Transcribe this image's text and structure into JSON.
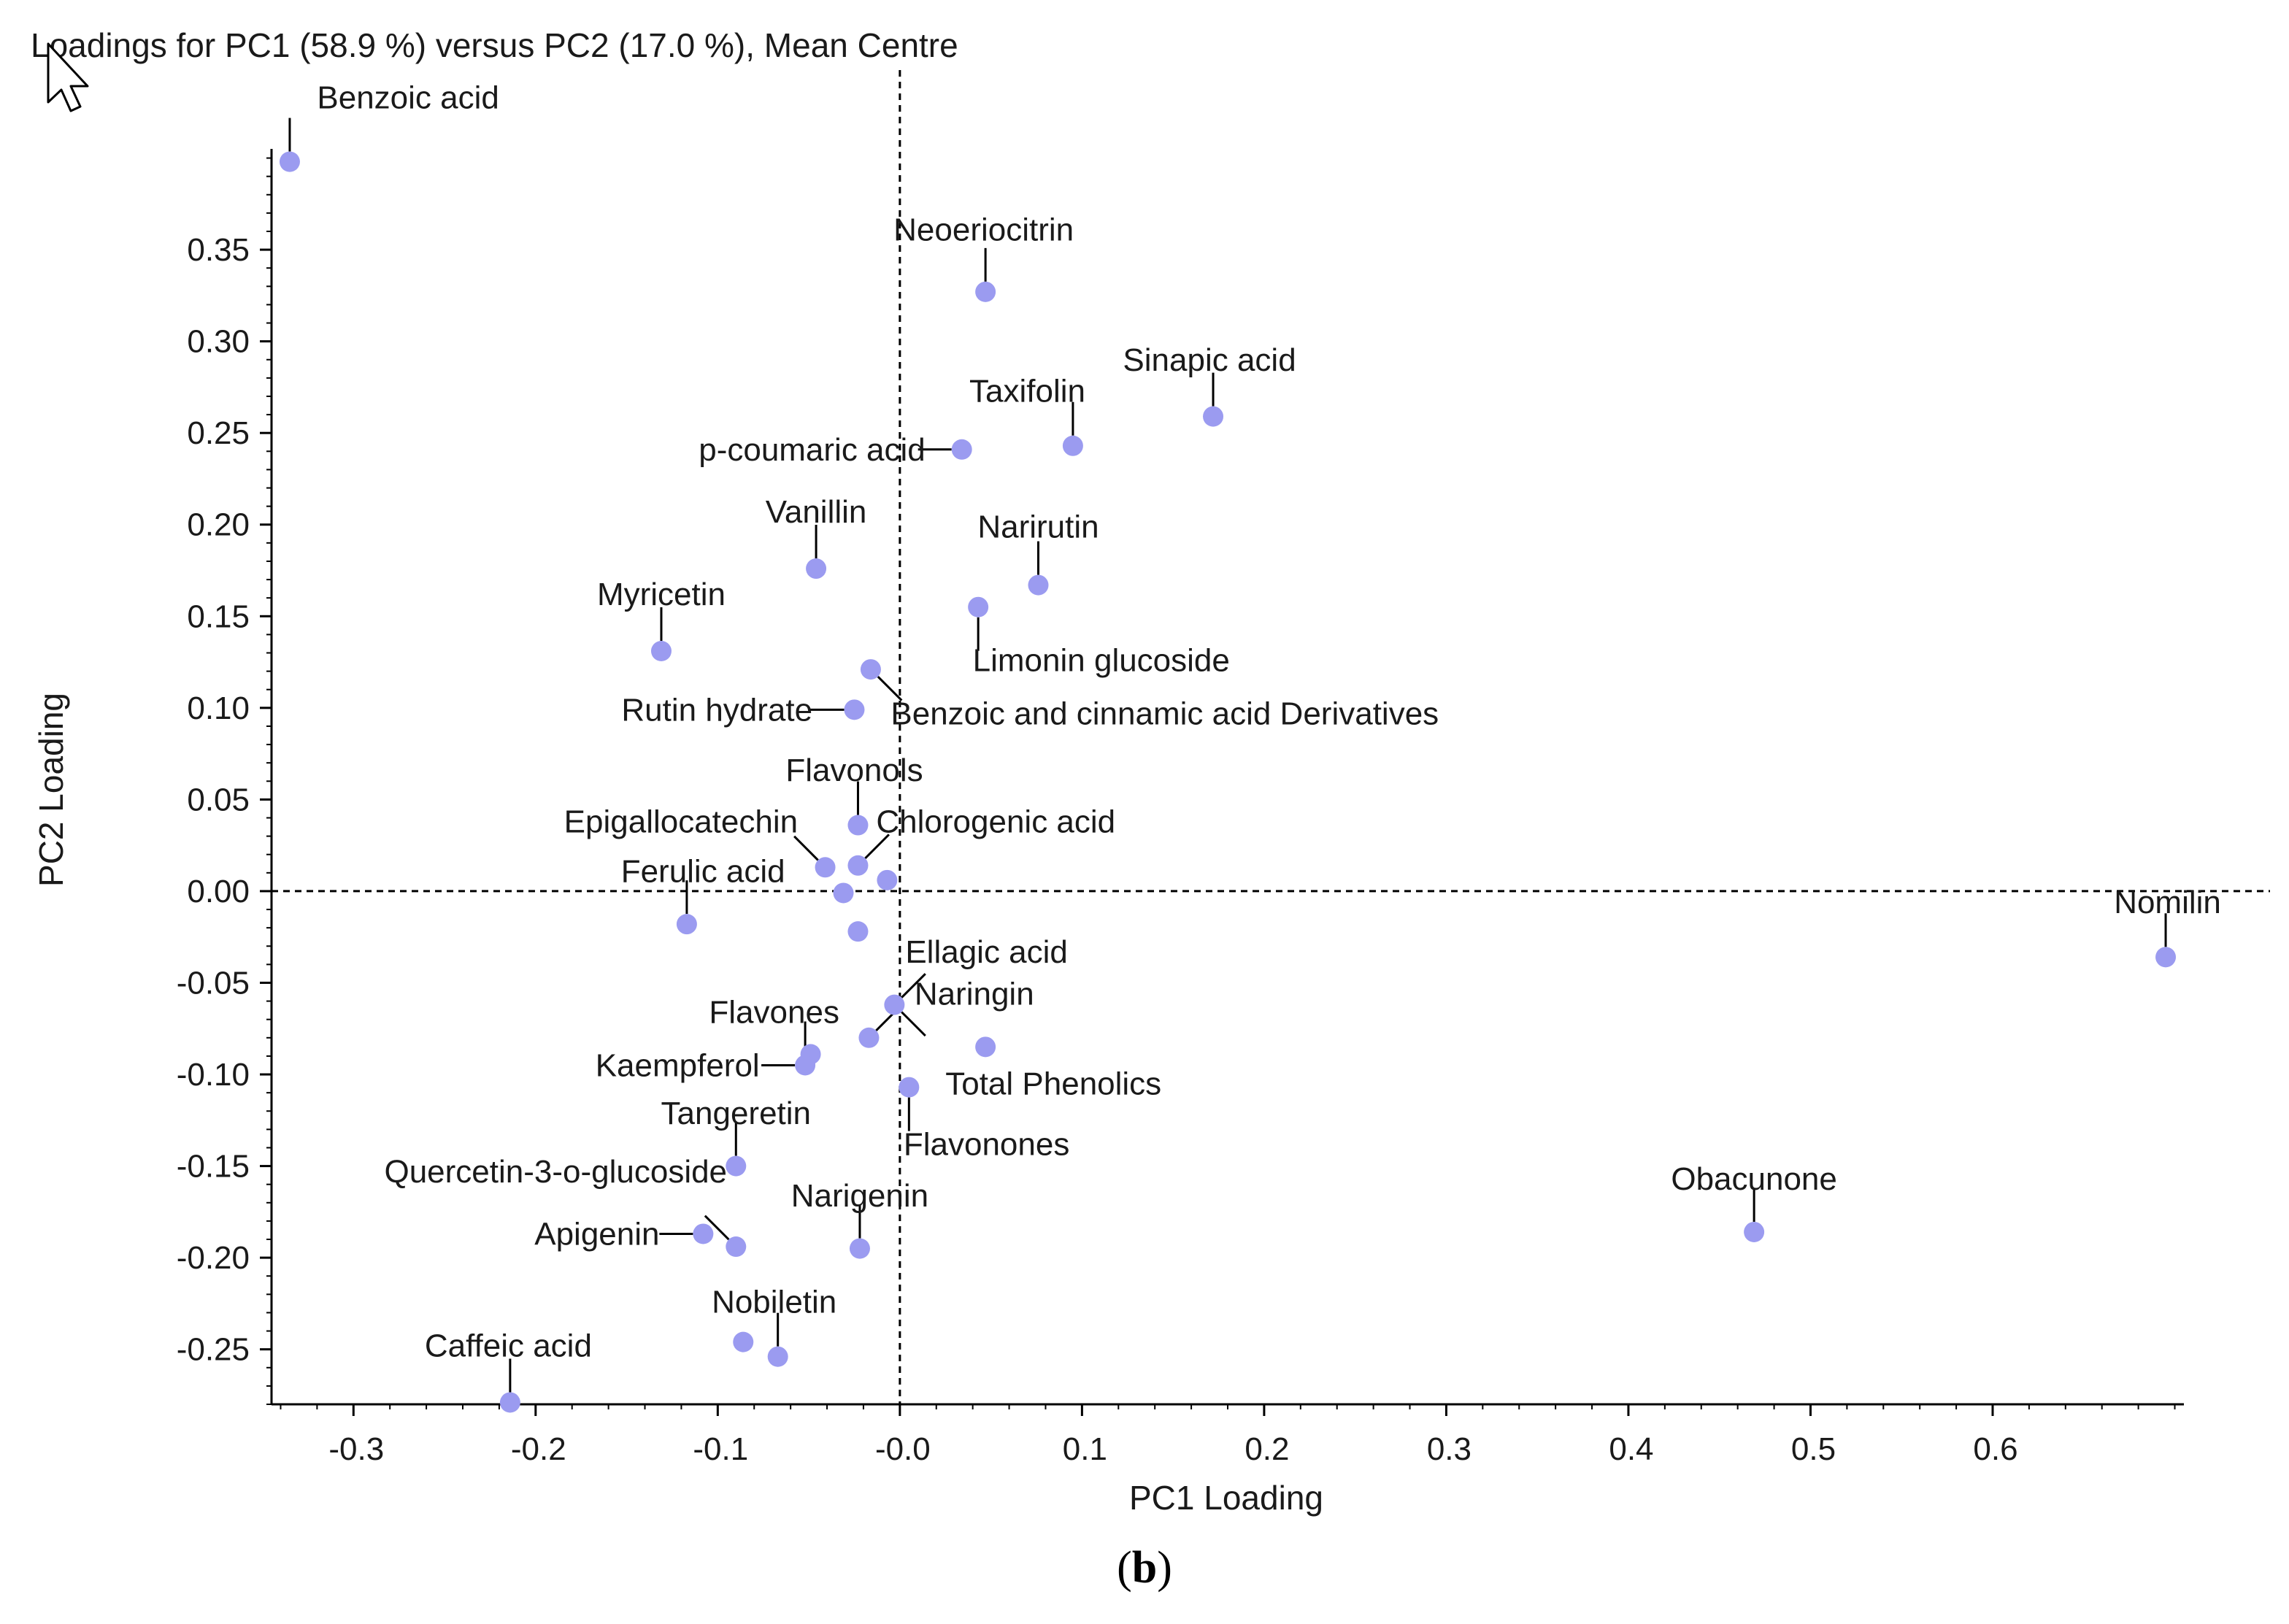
{
  "title": "Loadings for PC1 (58.9 %) versus PC2 (17.0 %), Mean Centre",
  "caption": {
    "open": "(",
    "letter": "b",
    "close": ")"
  },
  "colors": {
    "point": "#9b9bf0",
    "point_dark": "#5b5be6",
    "axis": "#000000",
    "text": "#1a1a1a"
  },
  "chart_data": {
    "type": "scatter",
    "title": "Loadings for PC1 (58.9 %) versus PC2 (17.0 %), Mean Centre",
    "xlabel": "PC1 Loading",
    "ylabel": "PC2 Loading",
    "xlim": [
      -0.345,
      0.705
    ],
    "ylim": [
      -0.28,
      0.405
    ],
    "x_ticks": [
      {
        "v": -0.3,
        "label": "-0.3"
      },
      {
        "v": -0.2,
        "label": "-0.2"
      },
      {
        "v": -0.1,
        "label": "-0.1"
      },
      {
        "v": 0.0,
        "label": "-0.0"
      },
      {
        "v": 0.1,
        "label": "0.1"
      },
      {
        "v": 0.2,
        "label": "0.2"
      },
      {
        "v": 0.3,
        "label": "0.3"
      },
      {
        "v": 0.4,
        "label": "0.4"
      },
      {
        "v": 0.5,
        "label": "0.5"
      },
      {
        "v": 0.6,
        "label": "0.6"
      }
    ],
    "y_ticks": [
      {
        "v": 0.35,
        "label": "0.35"
      },
      {
        "v": 0.3,
        "label": "0.30"
      },
      {
        "v": 0.25,
        "label": "0.25"
      },
      {
        "v": 0.2,
        "label": "0.20"
      },
      {
        "v": 0.15,
        "label": "0.15"
      },
      {
        "v": 0.1,
        "label": "0.10"
      },
      {
        "v": 0.05,
        "label": "0.05"
      },
      {
        "v": 0.0,
        "label": "0.00"
      },
      {
        "v": -0.05,
        "label": "-0.05"
      },
      {
        "v": -0.1,
        "label": "-0.10"
      },
      {
        "v": -0.15,
        "label": "-0.15"
      },
      {
        "v": -0.2,
        "label": "-0.20"
      },
      {
        "v": -0.25,
        "label": "-0.25"
      }
    ],
    "reference_lines": {
      "x": 0.0,
      "y": 0.0
    },
    "points": [
      {
        "x": -0.335,
        "y": 0.398
      },
      {
        "x": 0.047,
        "y": 0.327
      },
      {
        "x": 0.172,
        "y": 0.259
      },
      {
        "x": 0.095,
        "y": 0.243
      },
      {
        "x": 0.034,
        "y": 0.241
      },
      {
        "x": 0.076,
        "y": 0.167
      },
      {
        "x": -0.046,
        "y": 0.176
      },
      {
        "x": 0.043,
        "y": 0.155
      },
      {
        "x": -0.131,
        "y": 0.131
      },
      {
        "x": -0.016,
        "y": 0.121
      },
      {
        "x": -0.025,
        "y": 0.099
      },
      {
        "x": -0.023,
        "y": 0.036
      },
      {
        "x": -0.041,
        "y": 0.013
      },
      {
        "x": -0.023,
        "y": 0.014
      },
      {
        "x": -0.007,
        "y": 0.006
      },
      {
        "x": -0.031,
        "y": -0.001
      },
      {
        "x": -0.117,
        "y": -0.018
      },
      {
        "x": -0.023,
        "y": -0.022
      },
      {
        "x": 0.695,
        "y": -0.036
      },
      {
        "x": -0.003,
        "y": -0.062
      },
      {
        "x": -0.017,
        "y": -0.08
      },
      {
        "x": 0.047,
        "y": -0.085
      },
      {
        "x": -0.049,
        "y": -0.089
      },
      {
        "x": -0.052,
        "y": -0.095
      },
      {
        "x": 0.005,
        "y": -0.107
      },
      {
        "x": -0.09,
        "y": -0.15
      },
      {
        "x": -0.108,
        "y": -0.187
      },
      {
        "x": -0.09,
        "y": -0.194
      },
      {
        "x": -0.022,
        "y": -0.195
      },
      {
        "x": 0.469,
        "y": -0.186
      },
      {
        "x": -0.086,
        "y": -0.246
      },
      {
        "x": -0.067,
        "y": -0.254
      },
      {
        "x": -0.214,
        "y": -0.279
      }
    ],
    "labels": [
      {
        "text": "Benzoic acid",
        "anchor": "start",
        "lx": -0.335,
        "ly": 0.398,
        "ldx": 0,
        "ldy": -1,
        "tx": -0.32,
        "ty": 0.433
      },
      {
        "text": "Neoeriocitrin",
        "anchor": "middle",
        "lx": 0.047,
        "ly": 0.327,
        "ldx": 0,
        "ldy": -1,
        "tx": 0.046,
        "ty": 0.361
      },
      {
        "text": "Sinapic acid",
        "anchor": "middle",
        "lx": 0.172,
        "ly": 0.259,
        "ldx": 0,
        "ldy": -1,
        "tx": 0.17,
        "ty": 0.29
      },
      {
        "text": "Taxifolin",
        "anchor": "middle",
        "lx": 0.095,
        "ly": 0.243,
        "ldx": 0,
        "ldy": -1,
        "tx": 0.07,
        "ty": 0.273
      },
      {
        "text": "p-coumaric acid",
        "anchor": "end",
        "lx": 0.034,
        "ly": 0.241,
        "ldx": -1,
        "ldy": 0,
        "tx": 0.014,
        "ty": 0.241
      },
      {
        "text": "Narirutin",
        "anchor": "middle",
        "lx": 0.076,
        "ly": 0.167,
        "ldx": 0,
        "ldy": -1,
        "tx": 0.076,
        "ty": 0.199
      },
      {
        "text": "Vanillin",
        "anchor": "middle",
        "lx": -0.046,
        "ly": 0.176,
        "ldx": 0,
        "ldy": -1,
        "tx": -0.046,
        "ty": 0.207
      },
      {
        "text": "Limonin glucoside",
        "anchor": "start",
        "lx": 0.043,
        "ly": 0.155,
        "ldx": 0,
        "ldy": 1,
        "tx": 0.04,
        "ty": 0.126
      },
      {
        "text": "Myricetin",
        "anchor": "middle",
        "lx": -0.131,
        "ly": 0.131,
        "ldx": 0,
        "ldy": -1,
        "tx": -0.131,
        "ty": 0.162
      },
      {
        "text": "Benzoic and cinnamic acid Derivatives",
        "anchor": "start",
        "lx": -0.016,
        "ly": 0.121,
        "ldx": 1,
        "ldy": 1,
        "tx": -0.005,
        "ty": 0.097
      },
      {
        "text": "Rutin hydrate",
        "anchor": "end",
        "lx": -0.025,
        "ly": 0.099,
        "ldx": -1,
        "ldy": 0,
        "tx": -0.048,
        "ty": 0.099
      },
      {
        "text": "Flavonols",
        "anchor": "middle",
        "lx": -0.023,
        "ly": 0.036,
        "ldx": 0,
        "ldy": -1,
        "tx": -0.025,
        "ty": 0.066
      },
      {
        "text": "Epigallocatechin",
        "anchor": "end",
        "lx": -0.041,
        "ly": 0.013,
        "ldx": -1,
        "ldy": -1,
        "tx": -0.056,
        "ty": 0.038
      },
      {
        "text": "Chlorogenic acid",
        "anchor": "start",
        "lx": -0.023,
        "ly": 0.014,
        "ldx": 1,
        "ldy": -1,
        "tx": -0.013,
        "ty": 0.038
      },
      {
        "text": "Ferulic acid",
        "anchor": "end",
        "lx": -0.117,
        "ly": -0.018,
        "ldx": 0,
        "ldy": -1,
        "tx": -0.063,
        "ty": 0.011
      },
      {
        "text": "Ellagic acid",
        "anchor": "start",
        "lx": -0.003,
        "ly": -0.062,
        "ldx": 1,
        "ldy": -1,
        "tx": 0.003,
        "ty": -0.033
      },
      {
        "text": "Nomilin",
        "anchor": "middle",
        "lx": 0.695,
        "ly": -0.036,
        "ldx": 0,
        "ldy": -1,
        "tx": 0.696,
        "ty": -0.006
      },
      {
        "text": "Naringin",
        "anchor": "start",
        "lx": -0.017,
        "ly": -0.08,
        "ldx": 1,
        "ldy": -1,
        "tx": 0.008,
        "ty": -0.056
      },
      {
        "text": "Total Phenolics",
        "anchor": "start",
        "lx": -0.003,
        "ly": -0.062,
        "ldx": 1,
        "ldy": 1,
        "tx": 0.025,
        "ty": -0.105
      },
      {
        "text": "Flavones",
        "anchor": "middle",
        "lx": -0.052,
        "ly": -0.095,
        "ldx": 0,
        "ldy": -1,
        "tx": -0.069,
        "ty": -0.066
      },
      {
        "text": "Kaempferol",
        "anchor": "end",
        "lx": -0.052,
        "ly": -0.095,
        "ldx": -1,
        "ldy": 0,
        "tx": -0.077,
        "ty": -0.095
      },
      {
        "text": "Flavonones",
        "anchor": "start",
        "lx": 0.005,
        "ly": -0.107,
        "ldx": 0,
        "ldy": 1,
        "tx": 0.002,
        "ty": -0.138
      },
      {
        "text": "Tangeretin",
        "anchor": "middle",
        "lx": -0.09,
        "ly": -0.15,
        "ldx": 0,
        "ldy": -1,
        "tx": -0.09,
        "ty": -0.121
      },
      {
        "text": "Quercetin-3-o-glucoside",
        "anchor": "middle",
        "lx": -0.09,
        "ly": -0.194,
        "ldx": -1,
        "ldy": -1,
        "tx": -0.189,
        "ty": -0.153
      },
      {
        "text": "Apigenin",
        "anchor": "end",
        "lx": -0.108,
        "ly": -0.187,
        "ldx": -1,
        "ldy": 0,
        "tx": -0.132,
        "ty": -0.187
      },
      {
        "text": "Narigenin",
        "anchor": "middle",
        "lx": -0.022,
        "ly": -0.195,
        "ldx": 0,
        "ldy": -1,
        "tx": -0.022,
        "ty": -0.166
      },
      {
        "text": "Obacunone",
        "anchor": "middle",
        "lx": 0.469,
        "ly": -0.186,
        "ldx": 0,
        "ldy": -1,
        "tx": 0.469,
        "ty": -0.157
      },
      {
        "text": "Nobiletin",
        "anchor": "middle",
        "lx": -0.067,
        "ly": -0.254,
        "ldx": 0,
        "ldy": -1,
        "tx": -0.069,
        "ty": -0.224
      },
      {
        "text": "Caffeic acid",
        "anchor": "middle",
        "lx": -0.214,
        "ly": -0.279,
        "ldx": 0,
        "ldy": -1,
        "tx": -0.215,
        "ty": -0.248
      }
    ]
  }
}
